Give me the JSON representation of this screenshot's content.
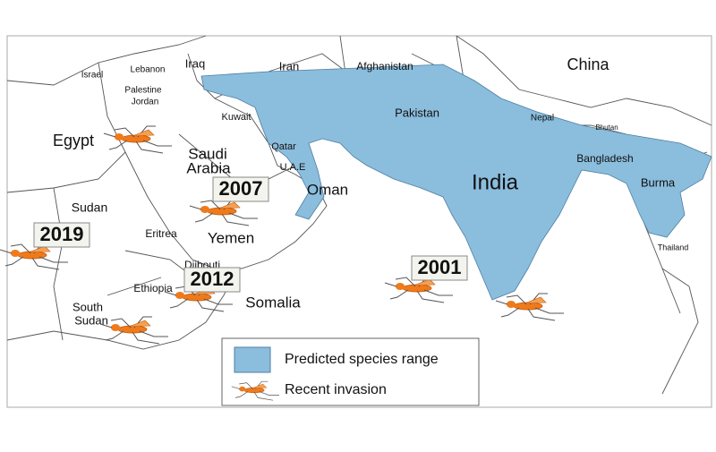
{
  "map": {
    "labels": [
      "Israel",
      "Lebanon",
      "Palestine",
      "Jordan",
      "Iraq",
      "Iran",
      "Afghanistan",
      "China",
      "Kuwait",
      "Pakistan",
      "Nepal",
      "Bhutan",
      "Egypt",
      "Saudi",
      "Arabia",
      "Qatar",
      "U.A.E",
      "Bangladesh",
      "India",
      "Burma",
      "Oman",
      "Sudan",
      "Eritrea",
      "Yemen",
      "Thailand",
      "Djibouti",
      "Ethiopia",
      "Somalia",
      "South",
      "Sudan"
    ],
    "invasions": [
      "2019",
      "2007",
      "2012",
      "2001"
    ],
    "legend": {
      "range": "Predicted species range",
      "invasion": "Recent invasion"
    }
  }
}
